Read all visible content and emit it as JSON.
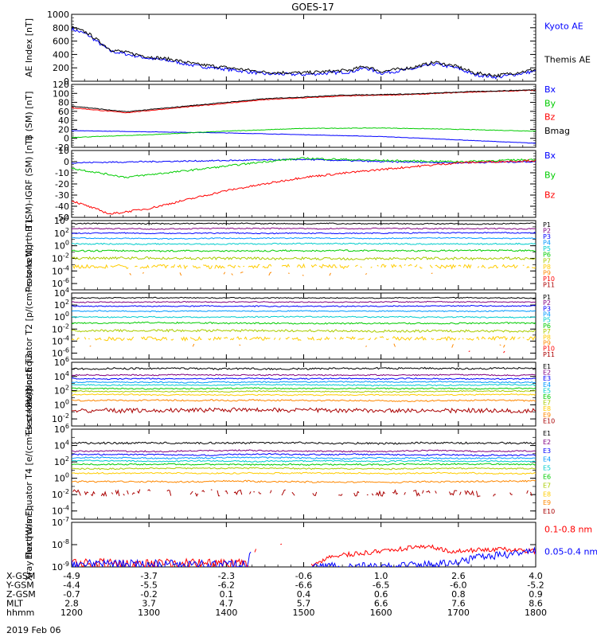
{
  "title": "GOES-17",
  "date_label": "2019 Feb 06",
  "chart_data": [
    {
      "type": "line",
      "ylabel": "AE Index [nT]",
      "ylim": [
        0,
        1000
      ],
      "yticks": [
        "1000",
        "800",
        "600",
        "400",
        "200",
        "0"
      ],
      "yticks_v": [
        1000,
        800,
        600,
        400,
        200,
        0
      ],
      "log": false,
      "legend_placement": "right",
      "series": [
        {
          "name": "Kyoto AE",
          "color": "#0000ff",
          "wave": {
            "kind": "ae_kyoto"
          }
        },
        {
          "name": "Themis AE",
          "color": "#000000",
          "wave": {
            "kind": "ae_themis"
          }
        }
      ]
    },
    {
      "type": "line",
      "ylabel": "B (SM) [nT]",
      "ylim": [
        -20,
        120
      ],
      "yticks": [
        "120",
        "100",
        "80",
        "60",
        "40",
        "20",
        "0",
        "-20"
      ],
      "yticks_v": [
        120,
        100,
        80,
        60,
        40,
        20,
        0,
        -20
      ],
      "log": false,
      "legend_placement": "right",
      "series": [
        {
          "name": "Bx",
          "color": "#0000ff",
          "wave": {
            "pts": [
              [
                12,
                17
              ],
              [
                14,
                12
              ],
              [
                16,
                4
              ],
              [
                18,
                -11
              ]
            ],
            "noise": 0.4
          }
        },
        {
          "name": "By",
          "color": "#00cc00",
          "wave": {
            "pts": [
              [
                12,
                2
              ],
              [
                13,
                8
              ],
              [
                14,
                16
              ],
              [
                15,
                22
              ],
              [
                16,
                23
              ],
              [
                17,
                20
              ],
              [
                18,
                16
              ]
            ],
            "noise": 0.6
          }
        },
        {
          "name": "Bz",
          "color": "#ff0000",
          "wave": {
            "pts": [
              [
                12,
                68
              ],
              [
                12.7,
                57
              ],
              [
                13.5,
                70
              ],
              [
                14.5,
                86
              ],
              [
                15.5,
                94
              ],
              [
                16.5,
                98
              ],
              [
                17,
                102
              ],
              [
                18,
                107
              ]
            ],
            "noise": 0.8
          }
        },
        {
          "name": "Bmag",
          "color": "#000000",
          "wave": {
            "pts": [
              [
                12,
                72
              ],
              [
                12.7,
                59
              ],
              [
                13.5,
                72
              ],
              [
                14.5,
                88
              ],
              [
                15.5,
                96
              ],
              [
                16.5,
                99
              ],
              [
                17,
                103
              ],
              [
                18,
                108
              ]
            ],
            "noise": 0.8
          }
        }
      ]
    },
    {
      "type": "line",
      "ylabel": "B (SM)-IGRF (SM) [nT]",
      "ylim": [
        -50,
        10
      ],
      "yticks": [
        "10",
        "0",
        "-10",
        "-20",
        "-30",
        "-40",
        "-50"
      ],
      "yticks_v": [
        10,
        0,
        -10,
        -20,
        -30,
        -40,
        -50
      ],
      "log": false,
      "legend_placement": "right",
      "series": [
        {
          "name": "Bx",
          "color": "#0000ff",
          "wave": {
            "pts": [
              [
                12,
                -1
              ],
              [
                13,
                0
              ],
              [
                14,
                1
              ],
              [
                15,
                2
              ],
              [
                16,
                0
              ],
              [
                17,
                -1
              ],
              [
                18,
                0
              ]
            ],
            "noise": 0.6
          }
        },
        {
          "name": "By",
          "color": "#00cc00",
          "wave": {
            "pts": [
              [
                12,
                -6
              ],
              [
                12.7,
                -14
              ],
              [
                13.5,
                -8
              ],
              [
                14.5,
                0
              ],
              [
                15,
                3
              ],
              [
                16,
                1
              ],
              [
                17,
                0
              ],
              [
                18,
                2
              ]
            ],
            "noise": 0.8
          }
        },
        {
          "name": "Bz",
          "color": "#ff0000",
          "wave": {
            "pts": [
              [
                12,
                -35
              ],
              [
                12.5,
                -47
              ],
              [
                13,
                -42
              ],
              [
                14,
                -26
              ],
              [
                15,
                -14
              ],
              [
                16,
                -7
              ],
              [
                17,
                -1
              ],
              [
                18,
                1
              ]
            ],
            "noise": 0.9
          }
        }
      ]
    },
    {
      "type": "line",
      "ylabel": "Protons North T1",
      "log": true,
      "ylim_exp": [
        -7,
        4
      ],
      "yticks": [
        "10^4",
        "10^2",
        "10^0",
        "10^-2",
        "10^-4",
        "10^-6"
      ],
      "yticks_v": [
        4,
        2,
        0,
        -2,
        -4,
        -6
      ],
      "legend_placement": "right",
      "series": [
        {
          "name": "P1",
          "color": "#000000",
          "wave": {
            "level": 3.5,
            "noise": 0.08
          }
        },
        {
          "name": "P2",
          "color": "#800080",
          "wave": {
            "level": 2.7,
            "noise": 0.08
          }
        },
        {
          "name": "P3",
          "color": "#0000ff",
          "wave": {
            "level": 2.0,
            "noise": 0.08
          }
        },
        {
          "name": "P4",
          "color": "#0099ff",
          "wave": {
            "level": 1.2,
            "noise": 0.08
          }
        },
        {
          "name": "P5",
          "color": "#00cccc",
          "wave": {
            "level": 0.3,
            "noise": 0.1
          }
        },
        {
          "name": "P6",
          "color": "#00cc00",
          "wave": {
            "level": -0.8,
            "noise": 0.12
          }
        },
        {
          "name": "P7",
          "color": "#aacc00",
          "wave": {
            "level": -2.0,
            "noise": 0.2
          }
        },
        {
          "name": "P8",
          "color": "#ffcc00",
          "wave": {
            "level": -3.3,
            "noise": 0.3,
            "gaps": 0.2
          }
        },
        {
          "name": "P9",
          "color": "#ff8800",
          "wave": {
            "level": -4.5,
            "noise": 0.3,
            "gaps": 0.8
          }
        },
        {
          "name": "P10",
          "color": "#ff0000",
          "wave": {
            "level": -6.0,
            "noise": 0.2,
            "gaps": 1
          }
        },
        {
          "name": "P11",
          "color": "#aa0000",
          "wave": {
            "level": -6.5,
            "noise": 0.2,
            "gaps": 1
          }
        }
      ]
    },
    {
      "type": "line",
      "ylabel": "Protons Equator T2 [p/(cm²-s-sr-keV)]",
      "log": true,
      "ylim_exp": [
        -7,
        4
      ],
      "yticks": [
        "10^4",
        "10^2",
        "10^0",
        "10^-2",
        "10^-4",
        "10^-6"
      ],
      "yticks_v": [
        4,
        2,
        0,
        -2,
        -4,
        -6
      ],
      "legend_placement": "right",
      "series": [
        {
          "name": "P1",
          "color": "#000000",
          "wave": {
            "level": 3.2,
            "noise": 0.08
          }
        },
        {
          "name": "P2",
          "color": "#800080",
          "wave": {
            "level": 2.5,
            "noise": 0.08
          }
        },
        {
          "name": "P3",
          "color": "#0000ff",
          "wave": {
            "level": 1.8,
            "noise": 0.08
          }
        },
        {
          "name": "P4",
          "color": "#0099ff",
          "wave": {
            "level": 1.0,
            "noise": 0.08
          }
        },
        {
          "name": "P5",
          "color": "#00cccc",
          "wave": {
            "level": 0.0,
            "noise": 0.1
          }
        },
        {
          "name": "P6",
          "color": "#00cc00",
          "wave": {
            "level": -1.0,
            "noise": 0.12
          }
        },
        {
          "name": "P7",
          "color": "#aacc00",
          "wave": {
            "level": -2.3,
            "noise": 0.2
          }
        },
        {
          "name": "P8",
          "color": "#ffcc00",
          "wave": {
            "level": -3.6,
            "noise": 0.3,
            "gaps": 0.2
          }
        },
        {
          "name": "P9",
          "color": "#ff8800",
          "wave": {
            "level": -4.8,
            "noise": 0.3,
            "gaps": 0.8
          }
        },
        {
          "name": "P10",
          "color": "#ff0000",
          "wave": {
            "level": -5.8,
            "noise": 0.2,
            "gaps": 0.9
          }
        },
        {
          "name": "P11",
          "color": "#aa0000",
          "wave": {
            "level": -6.5,
            "noise": 0.2,
            "gaps": 1
          }
        }
      ]
    },
    {
      "type": "line",
      "ylabel": "Electrons North T3",
      "log": true,
      "ylim_exp": [
        -3,
        6
      ],
      "yticks": [
        "10^6",
        "10^4",
        "10^2",
        "10^0",
        "10^-2"
      ],
      "yticks_v": [
        6,
        4,
        2,
        0,
        -2
      ],
      "legend_placement": "right",
      "series": [
        {
          "name": "E1",
          "color": "#000000",
          "wave": {
            "level": 5.1,
            "noise": 0.12
          }
        },
        {
          "name": "E2",
          "color": "#800080",
          "wave": {
            "level": 4.2,
            "noise": 0.08
          }
        },
        {
          "name": "E3",
          "color": "#0000ff",
          "wave": {
            "level": 3.7,
            "noise": 0.08
          }
        },
        {
          "name": "E4",
          "color": "#0099ff",
          "wave": {
            "level": 3.2,
            "noise": 0.08
          }
        },
        {
          "name": "E5",
          "color": "#00cccc",
          "wave": {
            "level": 2.8,
            "noise": 0.08
          }
        },
        {
          "name": "E6",
          "color": "#00cc00",
          "wave": {
            "level": 2.3,
            "noise": 0.08
          }
        },
        {
          "name": "E7",
          "color": "#aacc00",
          "wave": {
            "level": 1.9,
            "noise": 0.08
          }
        },
        {
          "name": "E8",
          "color": "#ffcc00",
          "wave": {
            "level": 1.4,
            "noise": 0.08
          }
        },
        {
          "name": "E9",
          "color": "#ff8800",
          "wave": {
            "level": 0.6,
            "noise": 0.1
          }
        },
        {
          "name": "E10",
          "color": "#aa0000",
          "wave": {
            "level": -0.8,
            "noise": 0.3
          }
        }
      ]
    },
    {
      "type": "line",
      "ylabel": "Electrons Equator T4 [e/(cm²-s-sr-keV)]",
      "log": true,
      "ylim_exp": [
        -5,
        6
      ],
      "yticks": [
        "10^6",
        "10^4",
        "10^2",
        "10^0",
        "10^-2",
        "10^-4"
      ],
      "yticks_v": [
        6,
        4,
        2,
        0,
        -2,
        -4
      ],
      "legend_placement": "right",
      "series": [
        {
          "name": "E1",
          "color": "#000000",
          "wave": {
            "level": 4.3,
            "noise": 0.12
          }
        },
        {
          "name": "E2",
          "color": "#800080",
          "wave": {
            "level": 3.3,
            "noise": 0.08
          }
        },
        {
          "name": "E3",
          "color": "#0000ff",
          "wave": {
            "level": 2.9,
            "noise": 0.08
          }
        },
        {
          "name": "E4",
          "color": "#0099ff",
          "wave": {
            "level": 2.5,
            "noise": 0.08
          }
        },
        {
          "name": "E5",
          "color": "#00cccc",
          "wave": {
            "level": 2.1,
            "noise": 0.08
          }
        },
        {
          "name": "E6",
          "color": "#00cc00",
          "wave": {
            "level": 1.7,
            "noise": 0.08
          }
        },
        {
          "name": "E7",
          "color": "#aacc00",
          "wave": {
            "level": 1.2,
            "noise": 0.08
          }
        },
        {
          "name": "E8",
          "color": "#ffcc00",
          "wave": {
            "level": 0.6,
            "noise": 0.08
          }
        },
        {
          "name": "E9",
          "color": "#ff8800",
          "wave": {
            "level": -0.4,
            "noise": 0.1
          }
        },
        {
          "name": "E10",
          "color": "#aa0000",
          "wave": {
            "level": -1.8,
            "noise": 0.4,
            "gaps": 0.4
          }
        }
      ]
    },
    {
      "type": "line",
      "ylabel": "Xray flux [W/m²]",
      "log": true,
      "ylim_exp": [
        -9,
        -7
      ],
      "yticks": [
        "10^-7",
        "10^-8",
        "10^-9"
      ],
      "yticks_v": [
        -7,
        -8,
        -9
      ],
      "legend_placement": "right",
      "series": [
        {
          "name": "0.1-0.8 nm",
          "color": "#ff0000",
          "wave": {
            "kind": "xray_long"
          }
        },
        {
          "name": "0.05-0.4 nm",
          "color": "#0000ff",
          "wave": {
            "kind": "xray_short"
          }
        }
      ]
    }
  ],
  "x_axis": {
    "range_hours": [
      12,
      18
    ],
    "tick_hours": [
      12,
      13,
      14,
      15,
      16,
      17,
      18
    ],
    "rows": [
      {
        "label": "X-GSM",
        "values": [
          "-4.9",
          "-3.7",
          "-2.3",
          "-0.6",
          "1.0",
          "2.6",
          "4.0"
        ]
      },
      {
        "label": "Y-GSM",
        "values": [
          "-4.4",
          "-5.5",
          "-6.2",
          "-6.6",
          "-6.5",
          "-6.0",
          "-5.2"
        ]
      },
      {
        "label": "Z-GSM",
        "values": [
          "-0.7",
          "-0.2",
          "0.1",
          "0.4",
          "0.6",
          "0.8",
          "0.9"
        ]
      },
      {
        "label": "MLT",
        "values": [
          "2.8",
          "3.7",
          "4.7",
          "5.7",
          "6.6",
          "7.6",
          "8.6"
        ]
      },
      {
        "label": "hhmm",
        "values": [
          "1200",
          "1300",
          "1400",
          "1500",
          "1600",
          "1700",
          "1800"
        ]
      }
    ]
  }
}
